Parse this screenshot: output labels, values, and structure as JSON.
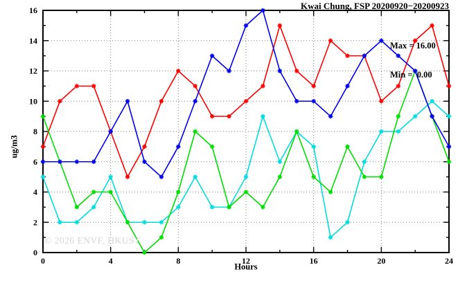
{
  "title": "Kwai Chung, FSP 20200920−20200923",
  "legend": {
    "max_line": "Max = 16.00",
    "min_line": "Min =  0.00"
  },
  "watermark": "© 2026 ENVF, HKUST",
  "chart_data": {
    "type": "line",
    "title": "Kwai Chung, FSP 20200920−20200923",
    "xlabel": "Hours",
    "ylabel": "ug/m3",
    "xlim": [
      0,
      24
    ],
    "ylim": [
      0,
      16
    ],
    "grid": {
      "vertical": [
        4,
        8,
        12,
        16,
        20
      ],
      "horizontal": [
        2,
        4,
        6,
        8,
        10,
        12,
        14
      ]
    },
    "x_ticks": {
      "major": [
        0,
        4,
        8,
        12,
        16,
        20,
        24
      ],
      "minor": [
        2,
        6,
        10,
        14,
        18,
        22
      ]
    },
    "y_ticks": {
      "major": [
        0,
        2,
        4,
        6,
        8,
        10,
        12,
        14,
        16
      ],
      "minor": [
        1,
        3,
        5,
        7,
        9,
        11,
        13,
        15
      ]
    },
    "x": [
      0,
      1,
      2,
      3,
      4,
      5,
      6,
      7,
      8,
      9,
      10,
      11,
      12,
      13,
      14,
      15,
      16,
      17,
      18,
      19,
      20,
      21,
      22,
      23,
      24
    ],
    "series": [
      {
        "name": "red",
        "color": "#ff0000",
        "values": [
          7,
          10,
          11,
          11,
          8,
          5,
          7,
          10,
          12,
          11,
          9,
          9,
          10,
          11,
          15,
          12,
          11,
          14,
          13,
          13,
          10,
          11,
          14,
          15,
          11
        ]
      },
      {
        "name": "cyan",
        "color": "#00dddd",
        "values": [
          5,
          2,
          2,
          3,
          5,
          2,
          2,
          2,
          3,
          5,
          3,
          3,
          5,
          9,
          6,
          8,
          7,
          1,
          2,
          6,
          8,
          8,
          9,
          10,
          9
        ]
      },
      {
        "name": "green",
        "color": "#00dd00",
        "values": [
          9,
          6,
          3,
          4,
          4,
          2,
          0,
          1,
          4,
          8,
          7,
          3,
          4,
          3,
          5,
          8,
          5,
          4,
          7,
          5,
          5,
          9,
          12,
          9,
          6
        ]
      },
      {
        "name": "blue",
        "color": "#0000ee",
        "values": [
          6,
          6,
          6,
          6,
          8,
          10,
          6,
          5,
          7,
          10,
          13,
          12,
          15,
          16,
          12,
          10,
          10,
          9,
          11,
          13,
          14,
          13,
          12,
          9,
          7
        ]
      }
    ],
    "stats": {
      "max": "16.00",
      "min": "0.00"
    }
  }
}
